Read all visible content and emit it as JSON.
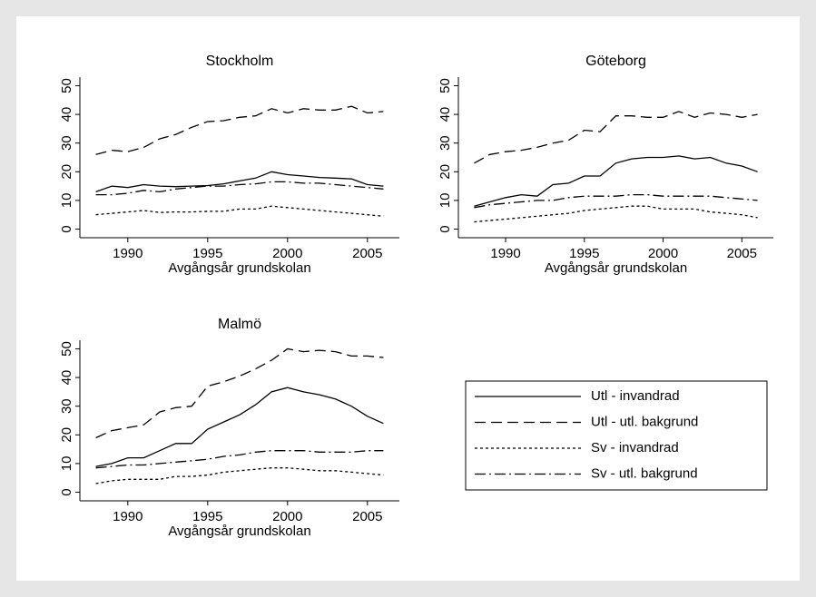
{
  "chart_data": [
    {
      "type": "line",
      "title": "Stockholm",
      "xlabel": "Avgångsår grundskolan",
      "x": [
        1988,
        1989,
        1990,
        1991,
        1992,
        1993,
        1994,
        1995,
        1996,
        1997,
        1998,
        1999,
        2000,
        2001,
        2002,
        2003,
        2004,
        2005,
        2006
      ],
      "xlim": [
        1987,
        2007
      ],
      "xticks": [
        1990,
        1995,
        2000,
        2005
      ],
      "ylim": [
        -3,
        53
      ],
      "yticks": [
        0,
        10,
        20,
        30,
        40,
        50
      ],
      "series": [
        {
          "name": "Utl - invandrad",
          "color": "#000000",
          "values": [
            13,
            15,
            14.5,
            15.5,
            15,
            14.8,
            15,
            15.2,
            15.8,
            16.8,
            17.8,
            20,
            19,
            18.5,
            18,
            17.8,
            17.5,
            15.5,
            15
          ]
        },
        {
          "name": "Utl - utl. bakgrund",
          "color": "#000000",
          "values": [
            26,
            27.5,
            27,
            28.5,
            31.5,
            33,
            35.5,
            37.5,
            37.8,
            39,
            39.5,
            42,
            40.5,
            42,
            41.5,
            41.5,
            42.8,
            40.5,
            41
          ]
        },
        {
          "name": "Sv - invandrad",
          "color": "#000000",
          "values": [
            5,
            5.5,
            6,
            6.5,
            5.8,
            6,
            6,
            6.2,
            6.2,
            7,
            7,
            8,
            7.5,
            7,
            6.5,
            6,
            5.5,
            5,
            4.5
          ]
        },
        {
          "name": "Sv - utl. bakgrund",
          "color": "#000000",
          "values": [
            12,
            12,
            12.5,
            13.5,
            13,
            14,
            14.5,
            15,
            15,
            15.5,
            15.8,
            16.5,
            16.5,
            16,
            16,
            15.5,
            15,
            14.5,
            14
          ]
        }
      ]
    },
    {
      "type": "line",
      "title": "Göteborg",
      "xlabel": "Avgångsår grundskolan",
      "x": [
        1988,
        1989,
        1990,
        1991,
        1992,
        1993,
        1994,
        1995,
        1996,
        1997,
        1998,
        1999,
        2000,
        2001,
        2002,
        2003,
        2004,
        2005,
        2006
      ],
      "xlim": [
        1987,
        2007
      ],
      "xticks": [
        1990,
        1995,
        2000,
        2005
      ],
      "ylim": [
        -3,
        53
      ],
      "yticks": [
        0,
        10,
        20,
        30,
        40,
        50
      ],
      "series": [
        {
          "name": "Utl - invandrad",
          "color": "#000000",
          "values": [
            8,
            9.5,
            11,
            12,
            11.5,
            15.5,
            16,
            18.5,
            18.5,
            23,
            24.5,
            25,
            25,
            25.5,
            24.5,
            25,
            23,
            22,
            20
          ]
        },
        {
          "name": "Utl - utl. bakgrund",
          "color": "#000000",
          "values": [
            23,
            26,
            27,
            27.5,
            28.5,
            30,
            31,
            34.5,
            34,
            39.5,
            39.5,
            39,
            39,
            41,
            39,
            40.5,
            40,
            39,
            40
          ]
        },
        {
          "name": "Sv - invandrad",
          "color": "#000000",
          "values": [
            2.5,
            3,
            3.5,
            4,
            4.5,
            5,
            5.5,
            6.5,
            7,
            7.5,
            8,
            8,
            7,
            7,
            7,
            6,
            5.5,
            5,
            4
          ]
        },
        {
          "name": "Sv - utl. bakgrund",
          "color": "#000000",
          "values": [
            7.5,
            8.5,
            9,
            9.5,
            10,
            10,
            11,
            11.5,
            11.5,
            11.5,
            12,
            12,
            11.5,
            11.5,
            11.5,
            11.5,
            11,
            10.5,
            10
          ]
        }
      ]
    },
    {
      "type": "line",
      "title": "Malmö",
      "xlabel": "Avgångsår grundskolan",
      "x": [
        1988,
        1989,
        1990,
        1991,
        1992,
        1993,
        1994,
        1995,
        1996,
        1997,
        1998,
        1999,
        2000,
        2001,
        2002,
        2003,
        2004,
        2005,
        2006
      ],
      "xlim": [
        1987,
        2007
      ],
      "xticks": [
        1990,
        1995,
        2000,
        2005
      ],
      "ylim": [
        -3,
        53
      ],
      "yticks": [
        0,
        10,
        20,
        30,
        40,
        50
      ],
      "series": [
        {
          "name": "Utl - invandrad",
          "color": "#000000",
          "values": [
            9,
            10,
            12,
            12,
            14.5,
            17,
            17,
            22,
            24.5,
            27,
            30.5,
            35,
            36.5,
            35,
            34,
            32.5,
            30,
            26.5,
            24
          ]
        },
        {
          "name": "Utl - utl. bakgrund",
          "color": "#000000",
          "values": [
            19,
            21.5,
            22.5,
            23.5,
            28,
            29.5,
            30,
            37,
            38.5,
            40.5,
            43,
            46,
            50,
            49,
            49.5,
            49,
            47.5,
            47.5,
            47
          ]
        },
        {
          "name": "Sv - invandrad",
          "color": "#000000",
          "values": [
            3,
            4,
            4.5,
            4.5,
            4.5,
            5.5,
            5.5,
            6,
            7,
            7.5,
            8,
            8.5,
            8.5,
            8,
            7.5,
            7.5,
            7,
            6.5,
            6
          ]
        },
        {
          "name": "Sv - utl. bakgrund",
          "color": "#000000",
          "values": [
            8.5,
            9,
            9.5,
            9.5,
            10,
            10.5,
            11,
            11.5,
            12.5,
            13,
            14,
            14.5,
            14.5,
            14.5,
            14,
            14,
            14,
            14.5,
            14.5
          ]
        }
      ]
    }
  ]
}
